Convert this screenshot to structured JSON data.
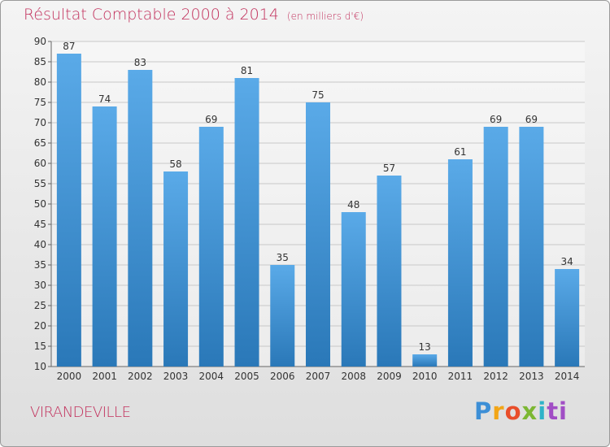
{
  "title": "Résultat Comptable 2000 à 2014",
  "unit": "(en milliers d'€)",
  "commune": "VIRANDEVILLE",
  "logo": {
    "part1": "P",
    "part2": "r",
    "part3": "o",
    "part4": "x",
    "part5": "i",
    "part6": "ti"
  },
  "colors": {
    "title": "#c2305c",
    "bar_light": "#5aaae8",
    "bar_dark": "#2a78b8",
    "grid": "#c8c8c8"
  },
  "chart_data": {
    "type": "bar",
    "categories": [
      "2000",
      "2001",
      "2002",
      "2003",
      "2004",
      "2005",
      "2006",
      "2007",
      "2008",
      "2009",
      "2010",
      "2011",
      "2012",
      "2013",
      "2014"
    ],
    "values": [
      87,
      74,
      83,
      58,
      69,
      81,
      35,
      75,
      48,
      57,
      13,
      61,
      69,
      69,
      34
    ],
    "ylim": [
      10,
      90
    ],
    "yticks": [
      10,
      15,
      20,
      25,
      30,
      35,
      40,
      45,
      50,
      55,
      60,
      65,
      70,
      75,
      80,
      85,
      90
    ],
    "grid": true,
    "xlabel": "",
    "ylabel": ""
  }
}
